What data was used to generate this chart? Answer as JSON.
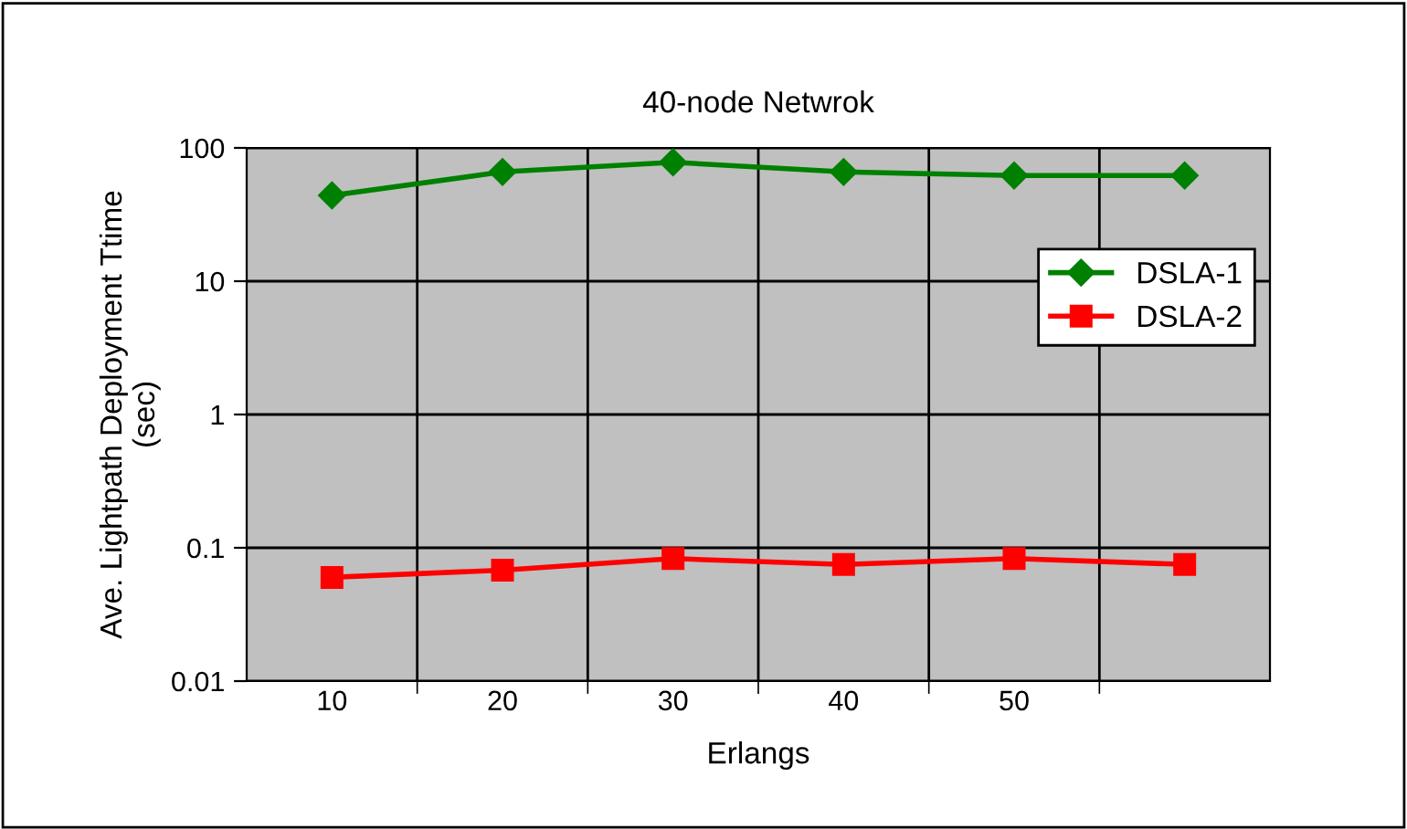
{
  "chart_data": {
    "type": "line",
    "title": "40-node Netwrok",
    "xlabel": "Erlangs",
    "ylabel": "Ave. Lightpath Deployment Ttime\n(sec)",
    "categories": [
      "10",
      "20",
      "30",
      "40",
      "50",
      null
    ],
    "series": [
      {
        "name": "DSLA-1",
        "color": "#008000",
        "marker": "diamond",
        "values": [
          44,
          66,
          78,
          66,
          62,
          62
        ]
      },
      {
        "name": "DSLA-2",
        "color": "#ff0000",
        "marker": "square",
        "values": [
          0.06,
          0.068,
          0.083,
          0.075,
          0.083,
          0.075
        ]
      }
    ],
    "log": "y",
    "ylim": [
      0.01,
      100
    ],
    "yticks": [
      0.01,
      0.1,
      1,
      10,
      100
    ],
    "grid": true,
    "legend": "right",
    "line_style": "solid"
  }
}
